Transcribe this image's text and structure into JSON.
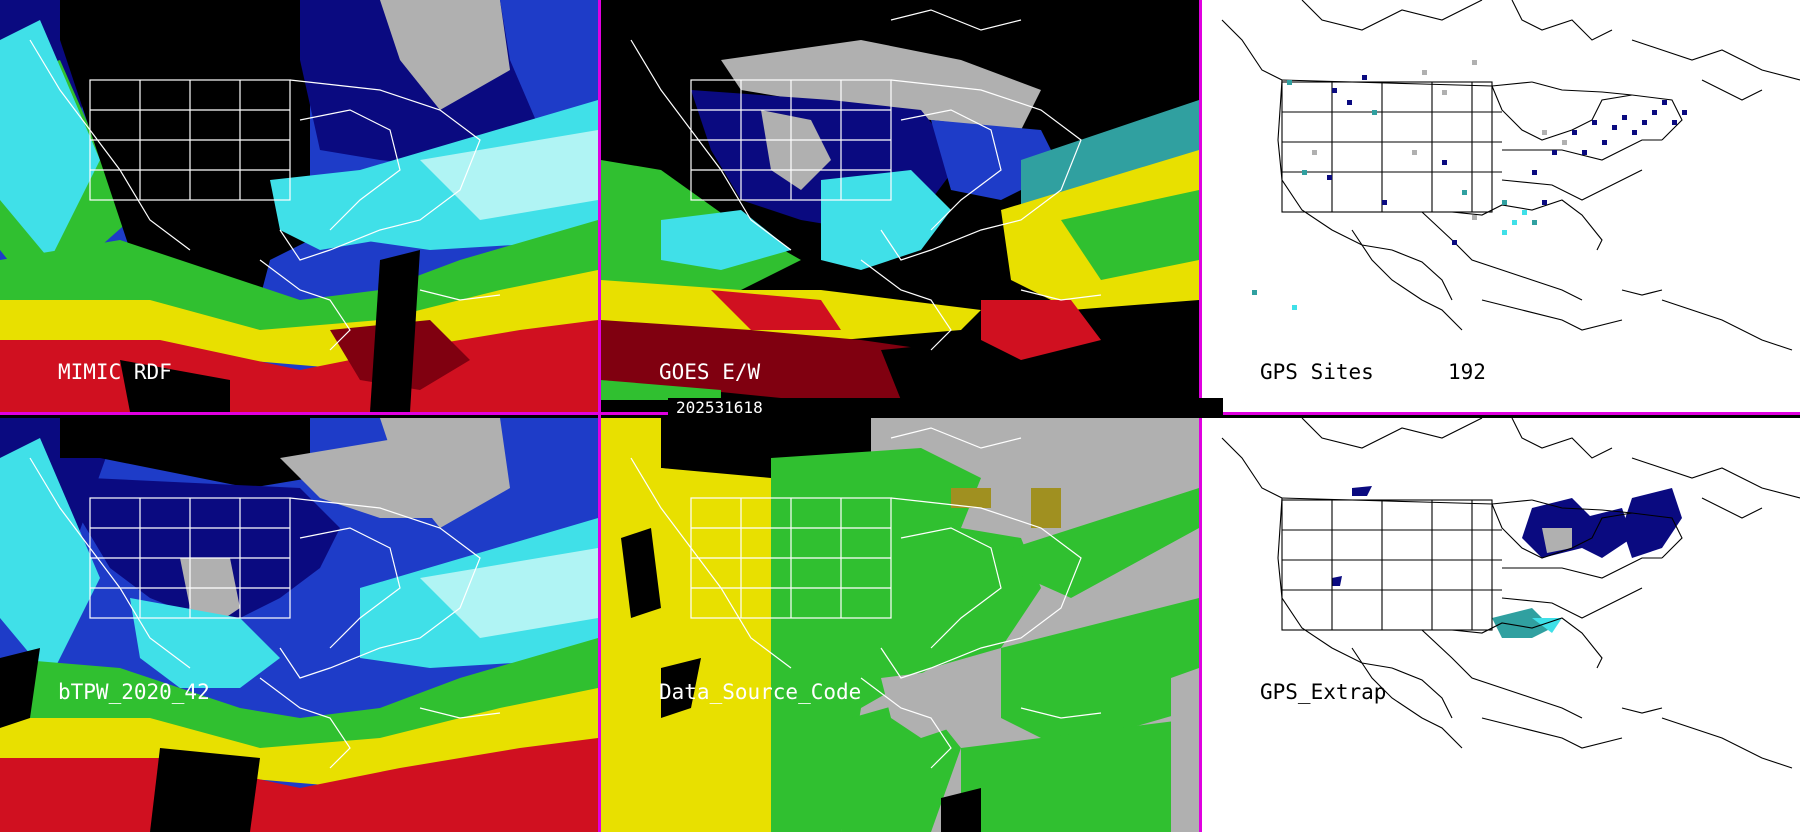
{
  "panels": {
    "mimic": {
      "label": "MIMIC RDF"
    },
    "goes": {
      "label": "GOES E/W"
    },
    "gps_sites": {
      "label": "GPS Sites",
      "count": "192"
    },
    "btpw": {
      "label": "bTPW_2020_42"
    },
    "data_source": {
      "label": "Data_Source_Code"
    },
    "gps_extrap": {
      "label": "GPS_Extrap"
    }
  },
  "timestamp": "202531618",
  "colors": {
    "divider": "#e000e0",
    "black": "#000000",
    "white": "#ffffff",
    "gray": "#b0b0b0",
    "dark_blue": "#0a0a80",
    "blue": "#1e3cc8",
    "cyan": "#40e0e8",
    "light_cyan": "#b0f4f4",
    "green": "#30c030",
    "yellow": "#e8e000",
    "red": "#d01020",
    "dark_red": "#800010",
    "teal": "#30a0a0",
    "bright_green": "#20c010",
    "olive": "#a09020"
  }
}
